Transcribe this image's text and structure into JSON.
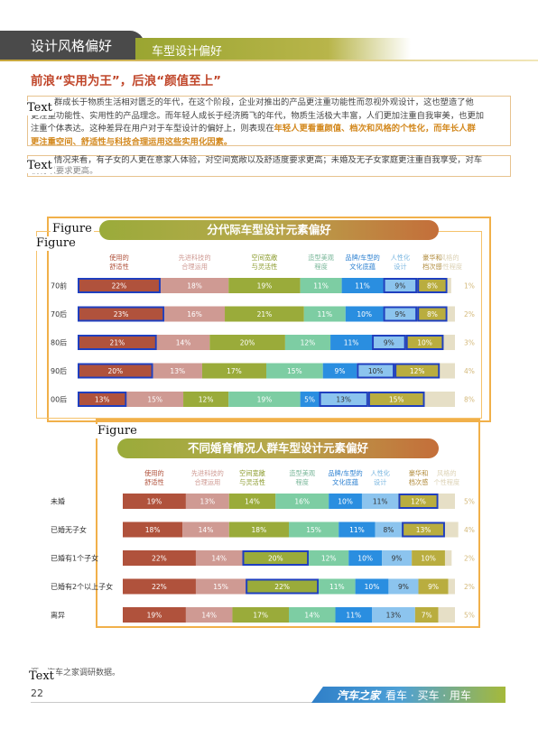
{
  "header": {
    "section_title": "设计风格偏好",
    "subsection_title": "车型设计偏好"
  },
  "heading": "前浪“实用为王”，后浪“颜值至上”",
  "paragraph1": {
    "text_a": "群成长于物质生活相对匮乏的年代，在这个阶段，企业对推出的产品更注重功能性而忽视外观设计，这也塑造了他",
    "text_b": "更注重功能性、实用性的产品理念。而年轻人成长于经济腾飞的年代，物质生活极大丰富，人们更加注重自我审美，也更加",
    "text_c": "注重个体表达。这种差异在用户对于车型设计的偏好上，则表现在",
    "highlight_a": "年轻人更看重颜值、档次和风格的个性化，而年长人群",
    "highlight_b": "更注重空间、舒适性与科技合理运用这些实用化因素。",
    "prefix_glyph": "们"
  },
  "paragraph2": {
    "text": "情况来看，有子女的人更在意家人体验，对空间宽敞以及舒适度要求更高；未婚及无子女家庭更注重自我享受，对车",
    "text_b": "辆有以要求更高。"
  },
  "layout_tags": {
    "text": "Text",
    "figure": "Figure"
  },
  "chart1": {
    "title": "分代际车型设计元素偏好",
    "columns": [
      "使用的\n舒适性",
      "先进科技的\n合理运用",
      "空间宽敞\n与灵活性",
      "造型美观\n程度",
      "品牌/车型的\n文化底蕴",
      "人性化\n设计",
      "豪华和\n档次感",
      "风格的\n个性程度"
    ],
    "column_colors": [
      "#b0523c",
      "#cf9a93",
      "#9aab3a",
      "#7dcda3",
      "#2a8ee0",
      "#8cc4ee",
      "#b9ad3f",
      "#e6dfc6"
    ],
    "column_label_colors": [
      "#b0523c",
      "#cf9a93",
      "#8a9a2a",
      "#7ab79a",
      "#2a7fd0",
      "#79b6e0",
      "#b08a3a",
      "#dcd2b5"
    ]
  },
  "chart2": {
    "title": "不同婚育情况人群车型设计元素偏好",
    "columns": [
      "使用的\n舒适性",
      "先进科技的\n合理运用",
      "空间宽敞\n与灵活性",
      "造型美观\n程度",
      "品牌/车型的\n文化底蕴",
      "人性化\n设计",
      "豪华和\n档次感",
      "风格的\n个性程度"
    ]
  },
  "chart_data": [
    {
      "type": "bar",
      "title": "分代际车型设计元素偏好",
      "stacked": true,
      "orientation": "horizontal",
      "categories": [
        "70前",
        "70后",
        "80后",
        "90后",
        "00后"
      ],
      "series": [
        {
          "name": "使用的舒适性",
          "values": [
            22,
            23,
            21,
            20,
            13
          ]
        },
        {
          "name": "先进科技的合理运用",
          "values": [
            18,
            16,
            14,
            13,
            15
          ]
        },
        {
          "name": "空间宽敞与灵活性",
          "values": [
            19,
            21,
            20,
            17,
            12
          ]
        },
        {
          "name": "造型美观程度",
          "values": [
            11,
            11,
            12,
            15,
            19
          ]
        },
        {
          "name": "品牌/车型的文化底蕴",
          "values": [
            11,
            10,
            11,
            9,
            5
          ]
        },
        {
          "name": "人性化设计",
          "values": [
            9,
            9,
            9,
            10,
            13
          ]
        },
        {
          "name": "豪华和档次感",
          "values": [
            8,
            8,
            10,
            12,
            15
          ]
        },
        {
          "name": "风格的个性程度",
          "values": [
            1,
            2,
            3,
            4,
            8
          ]
        }
      ],
      "highlighted": [
        [
          0,
          0
        ],
        [
          0,
          5
        ],
        [
          0,
          6
        ],
        [
          1,
          0
        ],
        [
          1,
          5
        ],
        [
          1,
          6
        ],
        [
          2,
          0
        ],
        [
          2,
          5
        ],
        [
          2,
          6
        ],
        [
          3,
          0
        ],
        [
          3,
          5
        ],
        [
          3,
          6
        ],
        [
          4,
          0
        ],
        [
          4,
          5
        ],
        [
          4,
          6
        ]
      ],
      "value_suffix": "%"
    },
    {
      "type": "bar",
      "title": "不同婚育情况人群车型设计元素偏好",
      "stacked": true,
      "orientation": "horizontal",
      "categories": [
        "未婚",
        "已婚无子女",
        "已婚有1个子女",
        "已婚有2个以上子女",
        "离异"
      ],
      "series": [
        {
          "name": "使用的舒适性",
          "values": [
            19,
            18,
            22,
            22,
            19
          ]
        },
        {
          "name": "先进科技的合理运用",
          "values": [
            13,
            14,
            14,
            15,
            14
          ]
        },
        {
          "name": "空间宽敞与灵活性",
          "values": [
            14,
            18,
            20,
            22,
            17
          ]
        },
        {
          "name": "造型美观程度",
          "values": [
            16,
            15,
            12,
            11,
            14
          ]
        },
        {
          "name": "品牌/车型的文化底蕴",
          "values": [
            10,
            11,
            10,
            10,
            11
          ]
        },
        {
          "name": "人性化设计",
          "values": [
            11,
            8,
            9,
            9,
            13
          ]
        },
        {
          "name": "豪华和档次感",
          "values": [
            12,
            13,
            10,
            9,
            7
          ]
        },
        {
          "name": "风格的个性程度",
          "values": [
            5,
            4,
            2,
            2,
            5
          ]
        }
      ],
      "highlighted": [
        [
          0,
          6
        ],
        [
          1,
          6
        ],
        [
          2,
          2
        ],
        [
          3,
          2
        ]
      ],
      "value_suffix": "%"
    }
  ],
  "footer": {
    "source": "源：汽车之家调研数据。",
    "page_number": "22",
    "brand": "汽车之家",
    "slogan": "看车 · 买车 · 用车"
  }
}
